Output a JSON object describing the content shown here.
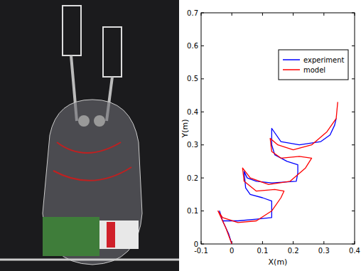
{
  "chart_data": {
    "type": "line",
    "xlabel": "X(m)",
    "ylabel": "Y(m)",
    "xlim": [
      -0.1,
      0.4
    ],
    "ylim": [
      0,
      0.7
    ],
    "xticks": [
      -0.1,
      0,
      0.1,
      0.2,
      0.3,
      0.4
    ],
    "yticks": [
      0,
      0.1,
      0.2,
      0.3,
      0.4,
      0.5,
      0.6,
      0.7
    ],
    "legend": "upper right",
    "series": [
      {
        "name": "experiment",
        "color": "#0000ff",
        "x": [
          0,
          -0.01,
          -0.03,
          -0.04,
          -0.035,
          -0.03,
          0.02,
          0.08,
          0.13,
          0.13,
          0.13,
          0.1,
          0.06,
          0.045,
          0.04,
          0.05,
          0.08,
          0.13,
          0.21,
          0.215,
          0.215,
          0.18,
          0.14,
          0.13,
          0.13,
          0.16,
          0.22,
          0.29,
          0.32,
          0.335,
          0.34
        ],
        "values": [
          0,
          0.03,
          0.07,
          0.1,
          0.085,
          0.07,
          0.07,
          0.075,
          0.08,
          0.1,
          0.13,
          0.14,
          0.15,
          0.17,
          0.22,
          0.2,
          0.19,
          0.185,
          0.19,
          0.215,
          0.24,
          0.25,
          0.27,
          0.3,
          0.35,
          0.31,
          0.3,
          0.31,
          0.33,
          0.36,
          0.38
        ]
      },
      {
        "name": "model",
        "color": "#ff0000",
        "x": [
          0,
          -0.02,
          -0.04,
          -0.045,
          -0.03,
          0.02,
          0.08,
          0.13,
          0.16,
          0.17,
          0.14,
          0.08,
          0.04,
          0.035,
          0.06,
          0.12,
          0.19,
          0.24,
          0.26,
          0.22,
          0.16,
          0.13,
          0.125,
          0.15,
          0.2,
          0.26,
          0.31,
          0.34,
          0.345
        ],
        "values": [
          0,
          0.05,
          0.09,
          0.1,
          0.08,
          0.065,
          0.07,
          0.1,
          0.14,
          0.16,
          0.165,
          0.16,
          0.19,
          0.23,
          0.2,
          0.18,
          0.19,
          0.23,
          0.26,
          0.265,
          0.26,
          0.28,
          0.32,
          0.3,
          0.285,
          0.3,
          0.34,
          0.38,
          0.43
        ]
      }
    ]
  }
}
